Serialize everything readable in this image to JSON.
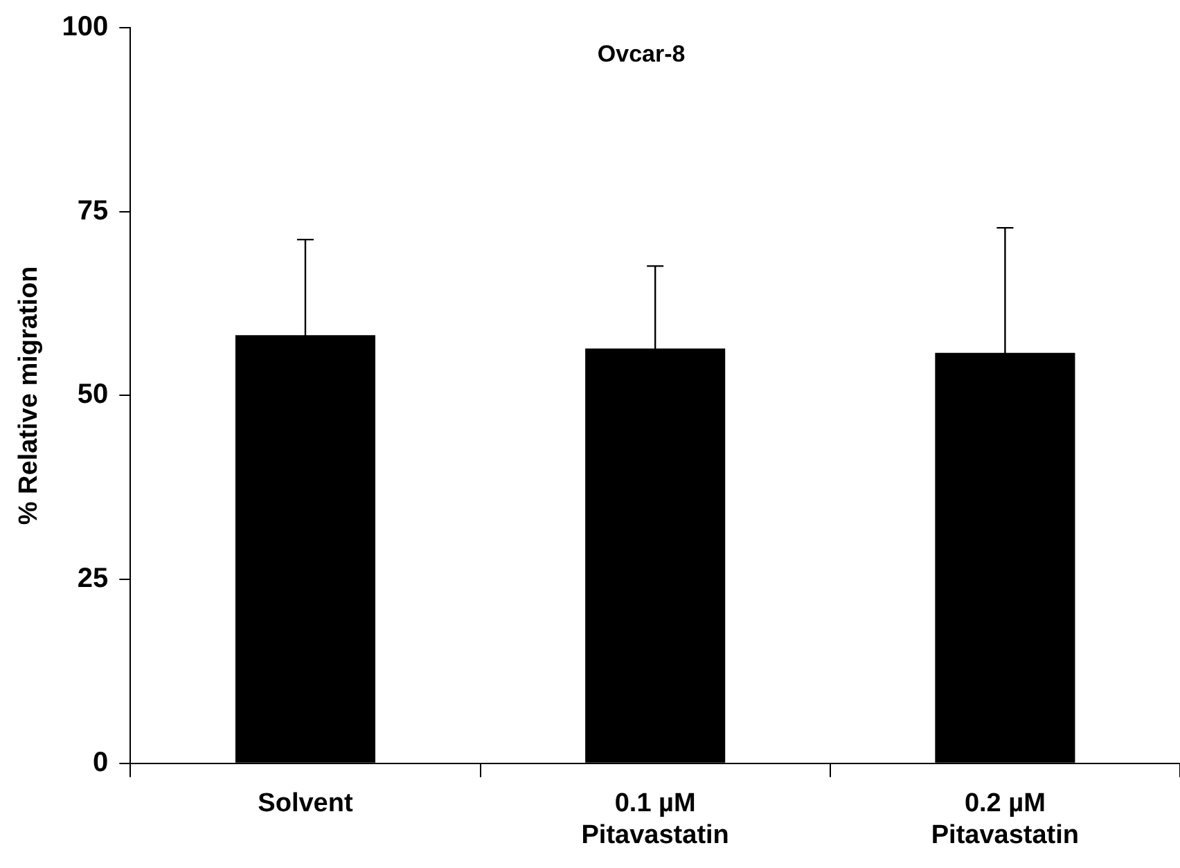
{
  "chart_data": {
    "type": "bar",
    "title": "Ovcar-8",
    "ylabel": "% Relative migration",
    "categories": [
      "Solvent",
      "0.1 µM\nPitavastatin",
      "0.2 µM\nPitavastatin"
    ],
    "values": [
      58.2,
      56.4,
      55.8
    ],
    "errors": [
      13.0,
      11.2,
      17.0
    ],
    "color": "#000000",
    "ylim": [
      0,
      100
    ],
    "yticks": [
      0,
      25,
      50,
      75,
      100
    ],
    "grid": false,
    "legend": false
  }
}
